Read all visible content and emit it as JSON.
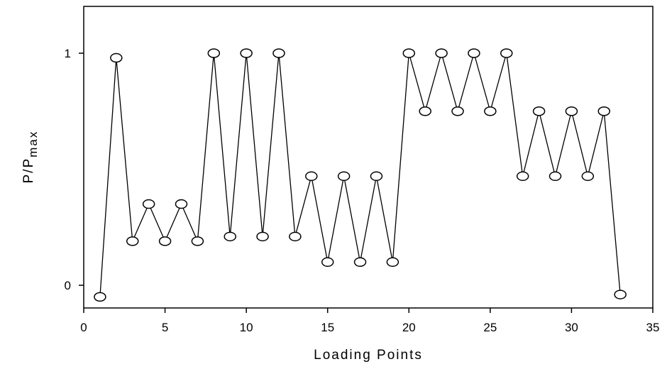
{
  "chart_data": {
    "type": "line",
    "title": "",
    "xlabel": "Loading Points",
    "ylabel_main": "P/P",
    "ylabel_sub": "max",
    "xlim": [
      0,
      35
    ],
    "ylim": [
      -0.1,
      1.2
    ],
    "x_ticks": [
      0,
      5,
      10,
      15,
      20,
      25,
      30,
      35
    ],
    "y_ticks": [
      0,
      1
    ],
    "grid": false,
    "marker": "open-ellipse",
    "series": [
      {
        "x": [
          1,
          2,
          3,
          4,
          5,
          6,
          7,
          8,
          9,
          10,
          11,
          12,
          13,
          14,
          15,
          16,
          17,
          18,
          19,
          20,
          21,
          22,
          23,
          24,
          25,
          26,
          27,
          28,
          29,
          30,
          31,
          32,
          33
        ],
        "values": [
          -0.05,
          0.98,
          0.19,
          0.35,
          0.19,
          0.35,
          0.19,
          1.0,
          0.21,
          1.0,
          0.21,
          1.0,
          0.21,
          0.47,
          0.1,
          0.47,
          0.1,
          0.47,
          0.1,
          1.0,
          0.75,
          1.0,
          0.75,
          1.0,
          0.75,
          1.0,
          0.47,
          0.75,
          0.47,
          0.75,
          0.47,
          0.75,
          -0.04
        ]
      }
    ]
  }
}
